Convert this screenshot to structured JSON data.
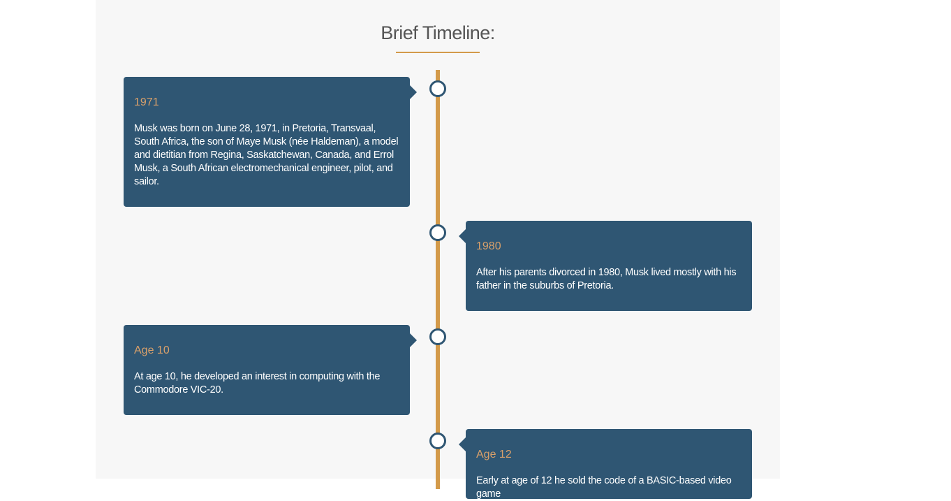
{
  "header": {
    "title": "Brief Timeline:"
  },
  "events": [
    {
      "year": "1971",
      "text": "Musk was born on June 28, 1971, in Pretoria, Transvaal, South Africa, the son of Maye Musk (née Haldeman), a model and dietitian from Regina, Saskatchewan, Canada, and Errol Musk, a South African electromechanical engineer, pilot, and sailor."
    },
    {
      "year": "1980",
      "text": "After his parents divorced in 1980, Musk lived mostly with his father in the suburbs of Pretoria."
    },
    {
      "year": "Age 10",
      "text": "At age 10, he developed an interest in computing with the Commodore VIC-20."
    },
    {
      "year": "Age 12",
      "text": "Early at age of 12 he sold the code of a BASIC-based video game"
    }
  ]
}
